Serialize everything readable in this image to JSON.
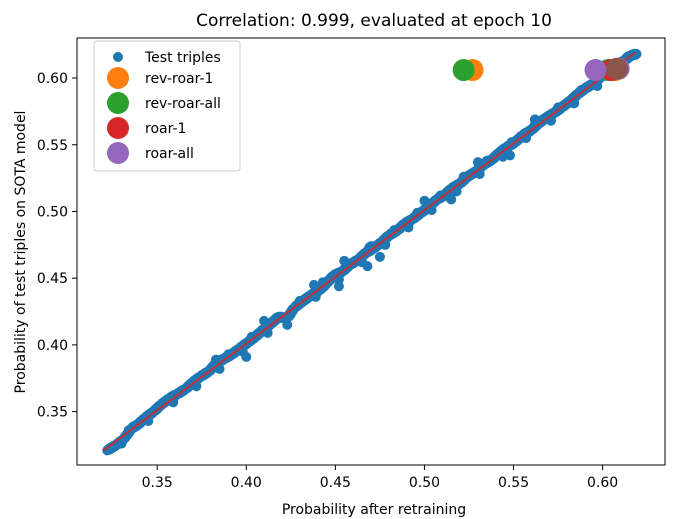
{
  "chart_data": {
    "type": "scatter",
    "title": "Correlation: 0.999, evaluated at epoch 10",
    "xlabel": "Probability after retraining",
    "ylabel": "Probability of test triples on SOTA model",
    "xlim": [
      0.305,
      0.635
    ],
    "ylim": [
      0.31,
      0.63
    ],
    "x_ticks": [
      "0.35",
      "0.40",
      "0.45",
      "0.50",
      "0.55",
      "0.60"
    ],
    "y_ticks": [
      "0.35",
      "0.40",
      "0.45",
      "0.50",
      "0.55",
      "0.60"
    ],
    "grid": false,
    "legend_position": "top-left",
    "series": [
      {
        "name": "Test triples",
        "color": "#1f77b4",
        "marker": "small-circle",
        "trend": {
          "x_start": 0.32,
          "x_end": 0.618,
          "y_at_x_start": 0.321,
          "slope": 1.0
        },
        "points": [
          [
            0.322,
            0.321
          ],
          [
            0.327,
            0.325
          ],
          [
            0.331,
            0.329
          ],
          [
            0.336,
            0.338
          ],
          [
            0.339,
            0.34
          ],
          [
            0.343,
            0.345
          ],
          [
            0.348,
            0.35
          ],
          [
            0.352,
            0.355
          ],
          [
            0.357,
            0.36
          ],
          [
            0.361,
            0.363
          ],
          [
            0.366,
            0.367
          ],
          [
            0.37,
            0.372
          ],
          [
            0.374,
            0.376
          ],
          [
            0.379,
            0.38
          ],
          [
            0.383,
            0.386
          ],
          [
            0.388,
            0.39
          ],
          [
            0.392,
            0.393
          ],
          [
            0.396,
            0.397
          ],
          [
            0.401,
            0.402
          ],
          [
            0.405,
            0.406
          ],
          [
            0.41,
            0.412
          ],
          [
            0.414,
            0.416
          ],
          [
            0.418,
            0.421
          ],
          [
            0.423,
            0.42
          ],
          [
            0.427,
            0.428
          ],
          [
            0.432,
            0.433
          ],
          [
            0.436,
            0.437
          ],
          [
            0.441,
            0.441
          ],
          [
            0.445,
            0.446
          ],
          [
            0.449,
            0.452
          ],
          [
            0.454,
            0.455
          ],
          [
            0.458,
            0.46
          ],
          [
            0.463,
            0.464
          ],
          [
            0.467,
            0.469
          ],
          [
            0.471,
            0.472
          ],
          [
            0.476,
            0.477
          ],
          [
            0.48,
            0.482
          ],
          [
            0.485,
            0.486
          ],
          [
            0.489,
            0.491
          ],
          [
            0.493,
            0.494
          ],
          [
            0.498,
            0.499
          ],
          [
            0.502,
            0.503
          ],
          [
            0.507,
            0.509
          ],
          [
            0.511,
            0.512
          ],
          [
            0.515,
            0.517
          ],
          [
            0.52,
            0.521
          ],
          [
            0.524,
            0.526
          ],
          [
            0.529,
            0.53
          ],
          [
            0.533,
            0.535
          ],
          [
            0.538,
            0.539
          ],
          [
            0.542,
            0.544
          ],
          [
            0.546,
            0.548
          ],
          [
            0.551,
            0.552
          ],
          [
            0.555,
            0.557
          ],
          [
            0.56,
            0.561
          ],
          [
            0.564,
            0.566
          ],
          [
            0.568,
            0.57
          ],
          [
            0.573,
            0.574
          ],
          [
            0.577,
            0.578
          ],
          [
            0.582,
            0.583
          ],
          [
            0.586,
            0.588
          ],
          [
            0.59,
            0.592
          ],
          [
            0.595,
            0.596
          ],
          [
            0.599,
            0.601
          ],
          [
            0.604,
            0.605
          ],
          [
            0.608,
            0.609
          ],
          [
            0.612,
            0.613
          ],
          [
            0.616,
            0.617
          ],
          [
            0.619,
            0.618
          ],
          [
            0.33,
            0.326
          ],
          [
            0.345,
            0.343
          ],
          [
            0.359,
            0.357
          ],
          [
            0.372,
            0.369
          ],
          [
            0.385,
            0.382
          ],
          [
            0.398,
            0.395
          ],
          [
            0.412,
            0.409
          ],
          [
            0.425,
            0.423
          ],
          [
            0.439,
            0.436
          ],
          [
            0.452,
            0.449
          ],
          [
            0.465,
            0.462
          ],
          [
            0.478,
            0.475
          ],
          [
            0.491,
            0.488
          ],
          [
            0.504,
            0.501
          ],
          [
            0.518,
            0.515
          ],
          [
            0.531,
            0.528
          ],
          [
            0.544,
            0.541
          ],
          [
            0.557,
            0.555
          ],
          [
            0.571,
            0.568
          ],
          [
            0.584,
            0.581
          ],
          [
            0.597,
            0.594
          ],
          [
            0.61,
            0.607
          ],
          [
            0.334,
            0.336
          ],
          [
            0.35,
            0.352
          ],
          [
            0.364,
            0.366
          ],
          [
            0.377,
            0.379
          ],
          [
            0.39,
            0.393
          ],
          [
            0.403,
            0.406
          ],
          [
            0.417,
            0.42
          ],
          [
            0.43,
            0.433
          ],
          [
            0.443,
            0.447
          ],
          [
            0.456,
            0.459
          ],
          [
            0.469,
            0.473
          ],
          [
            0.483,
            0.486
          ],
          [
            0.496,
            0.499
          ],
          [
            0.509,
            0.512
          ],
          [
            0.522,
            0.526
          ],
          [
            0.535,
            0.538
          ],
          [
            0.549,
            0.552
          ],
          [
            0.562,
            0.565
          ],
          [
            0.575,
            0.578
          ],
          [
            0.588,
            0.591
          ],
          [
            0.601,
            0.604
          ],
          [
            0.614,
            0.616
          ],
          [
            0.41,
            0.418
          ],
          [
            0.423,
            0.415
          ],
          [
            0.452,
            0.444
          ],
          [
            0.468,
            0.459
          ],
          [
            0.47,
            0.474
          ],
          [
            0.438,
            0.445
          ],
          [
            0.5,
            0.508
          ],
          [
            0.515,
            0.509
          ],
          [
            0.53,
            0.537
          ],
          [
            0.548,
            0.542
          ],
          [
            0.562,
            0.569
          ],
          [
            0.4,
            0.391
          ],
          [
            0.383,
            0.389
          ],
          [
            0.475,
            0.466
          ],
          [
            0.455,
            0.463
          ]
        ]
      },
      {
        "name": "rev-roar-1",
        "color": "#ff7f0e",
        "marker": "large-circle",
        "points": [
          [
            0.527,
            0.606
          ],
          [
            0.607,
            0.606
          ]
        ]
      },
      {
        "name": "rev-roar-all",
        "color": "#2ca02c",
        "marker": "large-circle",
        "points": [
          [
            0.522,
            0.606
          ],
          [
            0.603,
            0.606
          ]
        ]
      },
      {
        "name": "roar-1",
        "color": "#d62728",
        "marker": "large-circle",
        "points": [
          [
            0.605,
            0.606
          ]
        ]
      },
      {
        "name": "roar-all",
        "color": "#9467bd",
        "marker": "large-circle",
        "points": [
          [
            0.596,
            0.606
          ],
          [
            0.609,
            0.607
          ]
        ]
      }
    ],
    "extra_marker_colors": [
      "#8c564b"
    ],
    "trend_color": "#d62728"
  }
}
